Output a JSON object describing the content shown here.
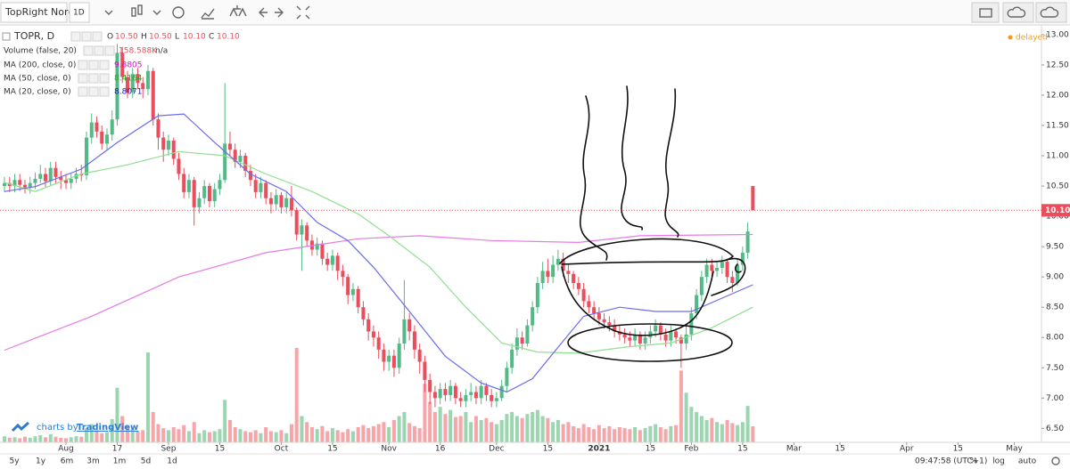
{
  "toolbar": {
    "symbol": "TopRight Nordi",
    "interval": "1D"
  },
  "legend": {
    "symbol": "TOPR, D",
    "ohlc": [
      {
        "key": "O",
        "value": "10.50"
      },
      {
        "key": "H",
        "value": "10.50"
      },
      {
        "key": "L",
        "value": "10.10"
      },
      {
        "key": "C",
        "value": "10.10"
      }
    ],
    "volume_name": "Volume (false, 20)",
    "volume_value": "158.588K",
    "volume_extra": "n/a"
  },
  "status": "delayed",
  "watermark": {
    "prefix": "charts by",
    "brand": "TradingView"
  },
  "bottom_bar": {
    "ranges": [
      "5y",
      "1y",
      "6m",
      "3m",
      "1m",
      "5d",
      "1d"
    ],
    "time": "09:47:58 (UTC+1)",
    "options": [
      "%",
      "log",
      "auto"
    ]
  },
  "chart_data": {
    "type": "candlestick",
    "up_color": "#53b987",
    "down_color": "#eb4d5c",
    "open": [
      10.5,
      10.55,
      10.5,
      10.6,
      10.52,
      10.48,
      10.55,
      10.62,
      10.7,
      10.58,
      10.8,
      10.65,
      10.6,
      10.55,
      10.62,
      10.7,
      10.68,
      11.3,
      11.55,
      11.4,
      11.2,
      11.35,
      11.6,
      12.7,
      12.3,
      12.05,
      12.35,
      12.2,
      12.1,
      12.4,
      11.6,
      11.3,
      11.1,
      11.25,
      10.95,
      10.7,
      10.4,
      10.6,
      10.15,
      10.3,
      10.5,
      10.25,
      10.45,
      10.6,
      11.2,
      11.1,
      10.9,
      11.0,
      10.75,
      10.6,
      10.4,
      10.55,
      10.3,
      10.2,
      10.35,
      10.15,
      10.3,
      10.1,
      9.7,
      9.85,
      9.6,
      9.45,
      9.55,
      9.3,
      9.2,
      9.35,
      9.1,
      9.0,
      8.7,
      8.8,
      8.5,
      8.3,
      8.1,
      8.0,
      7.8,
      7.6,
      7.7,
      7.5,
      7.9,
      8.3,
      8.1,
      7.8,
      7.6,
      7.3,
      7.1,
      7.0,
      7.15,
      7.05,
      7.2,
      7.0,
      6.95,
      7.05,
      7.1,
      7.0,
      7.2,
      7.05,
      6.95,
      7.0,
      7.2,
      7.5,
      7.8,
      8.0,
      7.9,
      8.2,
      8.5,
      8.9,
      9.1,
      9.0,
      9.2,
      9.3,
      9.1,
      9.05,
      8.9,
      8.8,
      8.6,
      8.5,
      8.4,
      8.3,
      8.25,
      8.2,
      8.1,
      8.05,
      8.0,
      7.95,
      8.05,
      7.9,
      8.0,
      8.1,
      8.2,
      8.05,
      7.95,
      8.1,
      8.0,
      7.9,
      8.05,
      8.4,
      8.7,
      9.0,
      9.2,
      9.1,
      9.15,
      9.25,
      9.0,
      8.9,
      9.2,
      9.4,
      10.5
    ],
    "high": [
      10.65,
      10.65,
      10.7,
      10.7,
      10.6,
      10.65,
      10.72,
      10.85,
      10.8,
      10.9,
      10.9,
      10.75,
      10.7,
      10.72,
      10.8,
      10.85,
      11.4,
      11.7,
      11.65,
      11.5,
      11.45,
      11.75,
      12.85,
      12.8,
      12.4,
      12.45,
      12.45,
      12.3,
      12.5,
      12.45,
      11.7,
      11.4,
      11.35,
      11.3,
      11.05,
      10.8,
      10.7,
      10.65,
      10.4,
      10.6,
      10.55,
      10.55,
      10.7,
      12.2,
      11.4,
      11.2,
      11.1,
      11.05,
      10.85,
      10.7,
      10.65,
      10.6,
      10.4,
      10.45,
      10.4,
      10.4,
      10.5,
      10.15,
      9.95,
      9.9,
      9.7,
      9.65,
      9.6,
      9.4,
      9.45,
      9.4,
      9.2,
      9.05,
      8.9,
      8.85,
      8.6,
      8.4,
      8.2,
      8.1,
      7.9,
      7.8,
      7.8,
      8.0,
      8.95,
      8.4,
      8.2,
      7.9,
      7.7,
      7.4,
      7.2,
      7.25,
      7.25,
      7.3,
      7.25,
      7.1,
      7.15,
      7.25,
      7.2,
      7.3,
      7.25,
      7.15,
      7.1,
      7.3,
      7.6,
      7.9,
      8.15,
      8.1,
      8.3,
      8.6,
      9.0,
      9.25,
      9.3,
      9.35,
      9.45,
      9.4,
      9.2,
      9.1,
      9.0,
      8.9,
      8.7,
      8.6,
      8.5,
      8.4,
      8.35,
      8.3,
      8.2,
      8.15,
      8.1,
      8.15,
      8.1,
      8.1,
      8.2,
      8.3,
      8.25,
      8.15,
      8.2,
      8.15,
      8.05,
      8.2,
      8.5,
      8.8,
      9.1,
      9.3,
      9.3,
      9.25,
      9.35,
      9.3,
      9.1,
      9.3,
      9.5,
      9.9,
      10.5
    ],
    "low": [
      10.4,
      10.4,
      10.4,
      10.42,
      10.38,
      10.38,
      10.45,
      10.55,
      10.48,
      10.5,
      10.55,
      10.45,
      10.45,
      10.45,
      10.55,
      10.58,
      10.6,
      11.2,
      11.3,
      11.1,
      11.1,
      11.25,
      11.5,
      12.2,
      11.95,
      11.95,
      12.1,
      11.95,
      12.0,
      11.5,
      11.1,
      10.9,
      11.0,
      10.85,
      10.6,
      10.3,
      10.3,
      9.85,
      10.05,
      10.2,
      10.15,
      10.15,
      10.35,
      10.55,
      11.0,
      10.8,
      10.8,
      10.65,
      10.5,
      10.3,
      10.3,
      10.2,
      10.05,
      10.1,
      10.05,
      10.05,
      10.0,
      9.6,
      9.1,
      9.5,
      9.35,
      9.35,
      9.2,
      9.1,
      9.1,
      8.95,
      8.85,
      8.55,
      8.6,
      8.4,
      8.2,
      7.95,
      7.85,
      7.65,
      7.45,
      7.45,
      7.35,
      7.4,
      7.8,
      7.95,
      7.65,
      7.4,
      7.1,
      6.9,
      6.85,
      6.9,
      6.95,
      6.95,
      6.9,
      6.85,
      6.85,
      6.95,
      6.9,
      6.9,
      6.95,
      6.85,
      6.85,
      6.95,
      7.1,
      7.4,
      7.7,
      7.8,
      7.85,
      8.1,
      8.4,
      8.8,
      8.9,
      8.9,
      9.1,
      9.0,
      8.9,
      8.8,
      8.7,
      8.5,
      8.4,
      8.3,
      8.2,
      8.15,
      8.1,
      8.0,
      7.95,
      7.9,
      7.85,
      7.85,
      7.8,
      7.8,
      7.9,
      8.0,
      7.95,
      7.85,
      7.85,
      7.9,
      7.5,
      7.8,
      7.95,
      8.3,
      8.6,
      8.9,
      9.0,
      9.0,
      9.05,
      8.9,
      8.75,
      8.85,
      9.1,
      9.3,
      10.1
    ],
    "close": [
      10.55,
      10.5,
      10.6,
      10.52,
      10.48,
      10.55,
      10.62,
      10.7,
      10.58,
      10.8,
      10.65,
      10.6,
      10.55,
      10.62,
      10.7,
      10.68,
      11.3,
      11.55,
      11.4,
      11.2,
      11.35,
      11.6,
      12.7,
      12.3,
      12.05,
      12.35,
      12.2,
      12.1,
      12.4,
      11.6,
      11.3,
      11.1,
      11.25,
      10.95,
      10.7,
      10.4,
      10.6,
      10.15,
      10.3,
      10.5,
      10.25,
      10.45,
      10.6,
      11.2,
      11.1,
      10.9,
      11.0,
      10.75,
      10.6,
      10.4,
      10.55,
      10.3,
      10.2,
      10.35,
      10.15,
      10.3,
      10.1,
      9.7,
      9.85,
      9.6,
      9.45,
      9.55,
      9.3,
      9.2,
      9.35,
      9.1,
      9.0,
      8.7,
      8.8,
      8.5,
      8.3,
      8.1,
      8.0,
      7.8,
      7.6,
      7.7,
      7.5,
      7.9,
      8.3,
      8.1,
      7.8,
      7.6,
      7.3,
      7.1,
      7.0,
      7.15,
      7.05,
      7.2,
      7.0,
      6.95,
      7.05,
      7.1,
      7.0,
      7.2,
      7.05,
      6.95,
      7.0,
      7.2,
      7.5,
      7.8,
      8.0,
      7.9,
      8.2,
      8.5,
      8.9,
      9.1,
      9.0,
      9.2,
      9.3,
      9.1,
      9.05,
      8.9,
      8.8,
      8.6,
      8.5,
      8.4,
      8.3,
      8.25,
      8.2,
      8.1,
      8.05,
      8.0,
      7.95,
      8.05,
      7.9,
      8.0,
      8.1,
      8.2,
      8.05,
      7.95,
      8.1,
      8.0,
      7.9,
      8.05,
      8.4,
      8.7,
      9.0,
      9.2,
      9.1,
      9.15,
      9.25,
      9.0,
      8.9,
      9.2,
      9.4,
      9.75,
      10.1
    ],
    "last_price_label": "10.10",
    "volume": {
      "name": "Volume",
      "up_color": "#9bd6b0",
      "down_color": "#f6a5a9",
      "axis": "y2",
      "values": [
        60,
        45,
        50,
        40,
        55,
        45,
        60,
        70,
        50,
        80,
        55,
        45,
        40,
        50,
        60,
        55,
        140,
        180,
        120,
        90,
        100,
        230,
        540,
        260,
        160,
        130,
        110,
        120,
        890,
        300,
        180,
        140,
        120,
        150,
        130,
        170,
        110,
        200,
        90,
        120,
        100,
        110,
        130,
        420,
        220,
        150,
        130,
        110,
        100,
        120,
        90,
        150,
        110,
        100,
        120,
        90,
        180,
        935,
        260,
        200,
        150,
        130,
        160,
        110,
        140,
        120,
        100,
        130,
        110,
        150,
        170,
        140,
        160,
        180,
        200,
        150,
        220,
        260,
        300,
        190,
        160,
        140,
        580,
        400,
        300,
        350,
        280,
        320,
        250,
        260,
        300,
        200,
        260,
        220,
        240,
        200,
        180,
        220,
        280,
        300,
        260,
        240,
        280,
        300,
        320,
        260,
        240,
        200,
        220,
        180,
        200,
        160,
        140,
        180,
        150,
        130,
        170,
        140,
        160,
        130,
        150,
        140,
        130,
        150,
        120,
        140,
        160,
        180,
        150,
        130,
        160,
        170,
        710,
        490,
        350,
        300,
        260,
        220,
        240,
        200,
        180,
        220,
        190,
        170,
        200,
        360,
        158.588
      ]
    },
    "series": [
      {
        "name": "MA (200, close, 0)",
        "color": "#e77be6",
        "label_color": "#d10fd0",
        "legend_value": "9.8805",
        "x": [
          0,
          17,
          34,
          51,
          69,
          81,
          95,
          112,
          124,
          146
        ],
        "values": [
          7.79,
          8.35,
          9.0,
          9.4,
          9.63,
          9.68,
          9.6,
          9.57,
          9.68,
          9.7
        ]
      },
      {
        "name": "MA (50, close, 0)",
        "color": "#8fe08f",
        "label_color": "#22a822",
        "legend_value": "8.4164",
        "x": [
          0,
          6,
          15,
          24,
          34,
          43,
          51,
          60,
          69,
          75,
          83,
          90,
          97,
          104,
          112,
          121,
          130,
          138,
          146
        ],
        "values": [
          10.56,
          10.41,
          10.7,
          10.85,
          11.07,
          11.0,
          10.7,
          10.41,
          10.04,
          9.68,
          9.16,
          8.5,
          7.91,
          7.76,
          7.74,
          7.84,
          7.91,
          8.16,
          8.5
        ]
      },
      {
        "name": "MA (20, close, 0)",
        "color": "#6a6af0",
        "label_color": "#1a1ab0",
        "legend_value": "8.8071",
        "x": [
          0,
          6,
          15,
          22,
          30,
          35,
          41,
          48,
          55,
          61,
          67,
          72,
          79,
          86,
          93,
          98,
          103,
          108,
          113,
          120,
          127,
          134,
          140,
          146
        ],
        "values": [
          10.41,
          10.49,
          10.78,
          11.22,
          11.66,
          11.69,
          11.22,
          10.7,
          10.41,
          9.9,
          9.6,
          9.16,
          8.43,
          7.69,
          7.25,
          7.1,
          7.32,
          7.84,
          8.35,
          8.5,
          8.43,
          8.43,
          8.65,
          8.87
        ]
      }
    ],
    "xlim": [
      -0.87,
      202.3
    ],
    "xticks": [
      {
        "value": 12,
        "label": "Aug"
      },
      {
        "value": 22,
        "label": "17"
      },
      {
        "value": 32,
        "label": "Sep"
      },
      {
        "value": 42,
        "label": "15"
      },
      {
        "value": 54,
        "label": "Oct"
      },
      {
        "value": 64,
        "label": "15"
      },
      {
        "value": 75,
        "label": "Nov"
      },
      {
        "value": 85,
        "label": "16"
      },
      {
        "value": 96,
        "label": "Dec"
      },
      {
        "value": 106,
        "label": "15"
      },
      {
        "value": 116,
        "label": "2021"
      },
      {
        "value": 126,
        "label": "15"
      },
      {
        "value": 134,
        "label": "Feb"
      },
      {
        "value": 144,
        "label": "15"
      },
      {
        "value": 154,
        "label": "Mar"
      },
      {
        "value": 163,
        "label": "15"
      },
      {
        "value": 176,
        "label": "Apr"
      },
      {
        "value": 186,
        "label": "15"
      },
      {
        "value": 197,
        "label": "May"
      }
    ],
    "ylim": [
      6.27,
      13.16
    ],
    "yticks": [
      {
        "value": 6.5,
        "label": "6.50"
      },
      {
        "value": 7,
        "label": "7.00"
      },
      {
        "value": 7.5,
        "label": "7.50"
      },
      {
        "value": 8,
        "label": "8.00"
      },
      {
        "value": 8.5,
        "label": "8.50"
      },
      {
        "value": 9,
        "label": "9.00"
      },
      {
        "value": 9.5,
        "label": "9.50"
      },
      {
        "value": 10,
        "label": "10.00"
      },
      {
        "value": 10.5,
        "label": "10.50"
      },
      {
        "value": 11,
        "label": "11.00"
      },
      {
        "value": 11.5,
        "label": "11.50"
      },
      {
        "value": 12,
        "label": "12.00"
      },
      {
        "value": 12.5,
        "label": "12.50"
      },
      {
        "value": 13,
        "label": "13.00"
      }
    ],
    "y2lim": [
      0,
      4130
    ],
    "grid": false
  }
}
